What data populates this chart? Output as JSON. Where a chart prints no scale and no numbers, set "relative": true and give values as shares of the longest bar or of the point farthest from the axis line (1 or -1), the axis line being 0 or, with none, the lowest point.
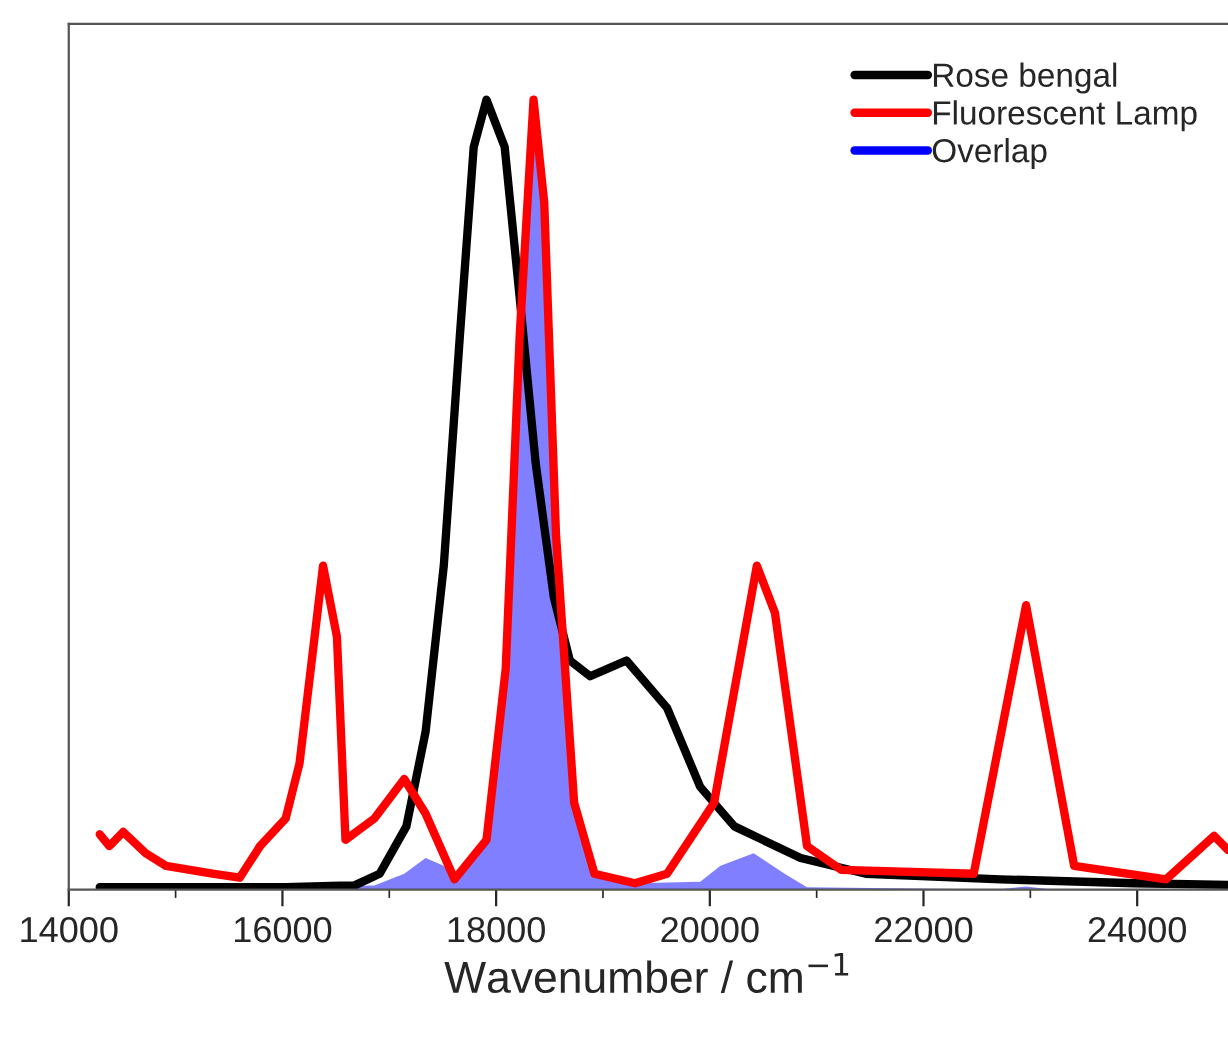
{
  "chart_data": {
    "type": "line",
    "relative": true,
    "xlabel": "Wavenumber / cm$^{−1}$",
    "xlim": [
      14000,
      24850
    ],
    "xticks": [
      14000,
      {
        "value": 15000,
        "label": null
      },
      16000,
      {
        "value": 17000,
        "label": null
      },
      18000,
      {
        "value": 19000,
        "label": null
      },
      20000,
      {
        "value": 21000,
        "label": null
      },
      22000,
      {
        "value": 23000,
        "label": null
      },
      24000
    ],
    "legend": "top right",
    "grid": false,
    "series": [
      {
        "name": "Rose bengal",
        "color": "#000000",
        "x": [
          14290,
          16030,
          16540,
          16670,
          16910,
          17160,
          17340,
          17510,
          17660,
          17790,
          17910,
          18080,
          18220,
          18370,
          18540,
          18690,
          18880,
          19220,
          19600,
          19910,
          20230,
          20850,
          21460,
          22720,
          23970,
          24850
        ],
        "values": [
          0.003,
          0.003,
          0.005,
          0.005,
          0.02,
          0.08,
          0.2,
          0.41,
          0.7,
          0.94,
          1.0,
          0.94,
          0.75,
          0.54,
          0.37,
          0.29,
          0.27,
          0.29,
          0.23,
          0.13,
          0.08,
          0.04,
          0.02,
          0.013,
          0.008,
          0.006
        ]
      },
      {
        "name": "Fluorescent Lamp",
        "color": "#ff0000",
        "x": [
          14290,
          14380,
          14510,
          14720,
          14910,
          15360,
          15600,
          15790,
          16030,
          16160,
          16380,
          16510,
          16590,
          16860,
          17140,
          17340,
          17610,
          17910,
          18090,
          18220,
          18350,
          18450,
          18560,
          18730,
          18920,
          19300,
          19600,
          20040,
          20440,
          20610,
          20910,
          21230,
          22470,
          22960,
          23410,
          24270,
          24720,
          24850
        ],
        "values": [
          0.07,
          0.055,
          0.073,
          0.046,
          0.03,
          0.02,
          0.015,
          0.055,
          0.09,
          0.16,
          0.41,
          0.32,
          0.063,
          0.09,
          0.14,
          0.096,
          0.013,
          0.063,
          0.28,
          0.7,
          1.0,
          0.87,
          0.45,
          0.11,
          0.02,
          0.008,
          0.02,
          0.11,
          0.41,
          0.35,
          0.055,
          0.025,
          0.02,
          0.36,
          0.03,
          0.013,
          0.068,
          0.05
        ]
      },
      {
        "name": "Overlap",
        "type": "area",
        "color": "#0000ff",
        "x": [
          14290,
          16860,
          17140,
          17340,
          17510,
          17610,
          17790,
          17910,
          18090,
          18220,
          18330,
          18450,
          18560,
          18730,
          18920,
          19300,
          19910,
          20100,
          20410,
          20700,
          20910,
          22700,
          22960,
          23200,
          24850
        ],
        "values": [
          0,
          0.005,
          0.02,
          0.04,
          0.03,
          0.013,
          0.04,
          0.063,
          0.28,
          0.7,
          1.0,
          0.87,
          0.45,
          0.11,
          0.02,
          0.008,
          0.01,
          0.03,
          0.046,
          0.02,
          0.003,
          0,
          0.004,
          0,
          0
        ]
      }
    ]
  }
}
